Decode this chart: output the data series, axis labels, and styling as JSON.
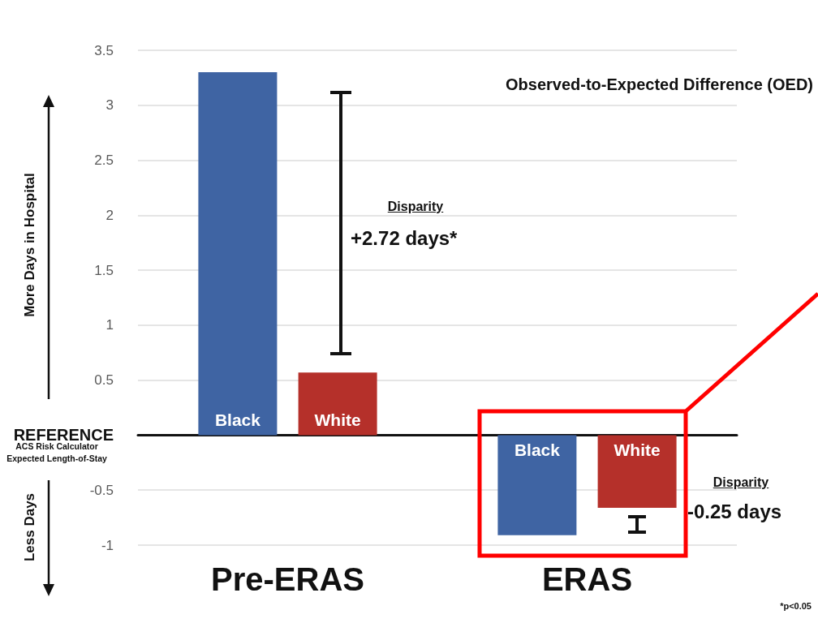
{
  "chart_data": {
    "type": "bar",
    "title": "Observed-to-Expected Difference (OED)",
    "ylabel": "More Days in Hospital",
    "categories": [
      "Pre-ERAS",
      "ERAS"
    ],
    "series": [
      {
        "name": "Black",
        "color": "#3f64a3",
        "values": [
          3.3,
          -0.91
        ]
      },
      {
        "name": "White",
        "color": "#b5302a",
        "values": [
          0.57,
          -0.66
        ]
      }
    ],
    "ylim": [
      -1,
      3.5
    ],
    "yticks": [
      -1,
      -0.5,
      {
        "value": 0,
        "label": "REFERENCE"
      },
      0.5,
      1,
      1.5,
      2,
      2.5,
      3,
      3.5
    ],
    "grid": "y",
    "annotations": [
      "Disparity",
      "+2.72 days*",
      "Disparity",
      "-0.25 days",
      "*p<0.05",
      "ACS Risk Calculator Expected Length-of-Stay",
      "Less Days"
    ]
  }
}
